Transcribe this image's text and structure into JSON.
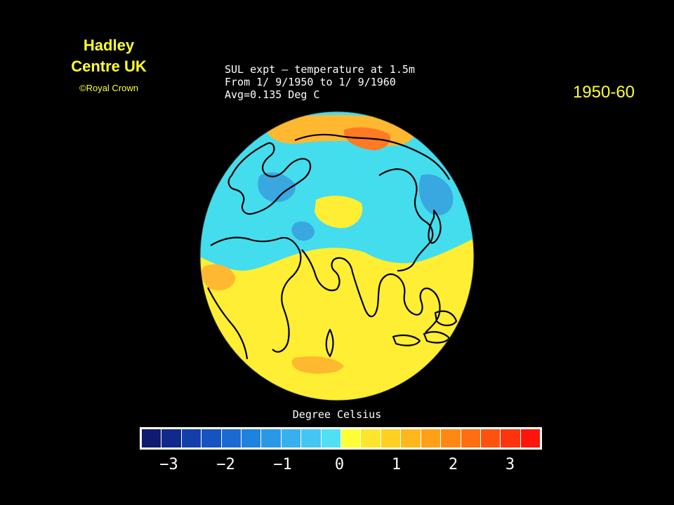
{
  "credit": {
    "org_line1": "Hadley",
    "org_line2": "Centre UK",
    "copyright": "©Royal Crown"
  },
  "decade_label": "1950-60",
  "map_title": {
    "line1": "SUL expt — temperature at 1.5m",
    "line2": "From 1/ 9/1950 to 1/ 9/1960",
    "line3": "Avg=0.135 Deg C"
  },
  "legend": {
    "title": "Degree Celsius",
    "ticks": [
      "−3",
      "−2",
      "−1",
      "0",
      "1",
      "2",
      "3"
    ],
    "range": [
      -3.5,
      3.5
    ],
    "colors": [
      "#101a6e",
      "#0f2a8c",
      "#1240a8",
      "#1553c0",
      "#1a6ad2",
      "#1e82de",
      "#2a98e6",
      "#36b0ee",
      "#44c6f2",
      "#4fe0f4",
      "#ffff33",
      "#ffe62a",
      "#ffd020",
      "#ffb81a",
      "#ffa016",
      "#ff8812",
      "#ff6e10",
      "#ff520e",
      "#ff340c",
      "#ff140c"
    ]
  },
  "map_colors": {
    "ocean_warm": "#ffee33",
    "cool_band": "#44ddee",
    "cold_patch": "#3aa8e0",
    "warm_patch": "#ffb830",
    "hot_patch": "#ff7a22",
    "coastline": "#000000"
  }
}
